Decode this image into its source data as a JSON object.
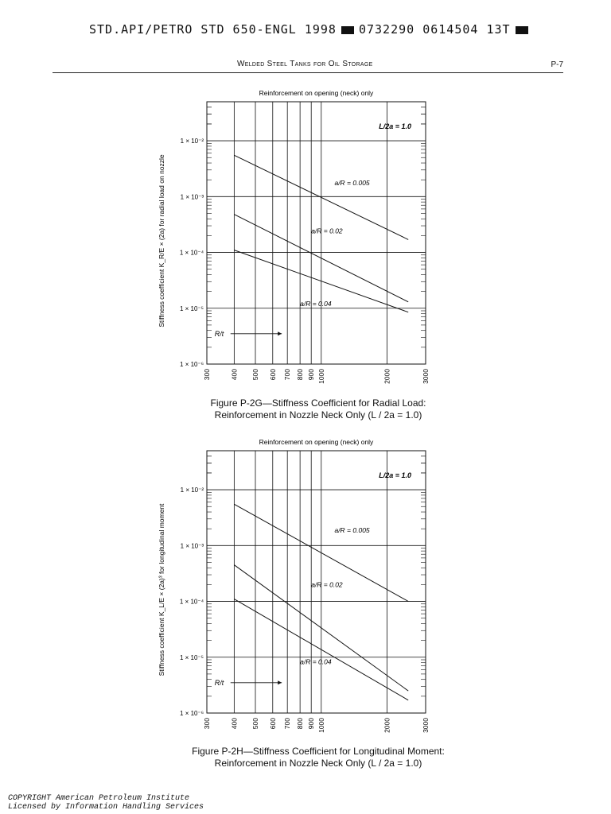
{
  "header": {
    "std_left": "STD.API/PETRO STD 650-ENGL 1998",
    "std_right": "0732290 0614504 13T",
    "running_head": "Welded Steel Tanks for Oil Storage",
    "page_number": "P-7"
  },
  "chart_data": [
    {
      "type": "line",
      "title": "Reinforcement on opening (neck) only",
      "ylabel": "Stiffness coefficient K_R/E × (2a) for radial load on nozzle",
      "xlabel": "R/t",
      "xscale": "log",
      "yscale": "log",
      "xlim": [
        300,
        3000
      ],
      "ylim": [
        1e-06,
        0.05
      ],
      "x_ticks": [
        "300",
        "400",
        "500",
        "600",
        "700",
        "800",
        "900",
        "1000",
        "2000",
        "3000"
      ],
      "y_ticks": [
        "1 × 10⁻²",
        "1 × 10⁻³",
        "1 × 10⁻⁴",
        "1 × 10⁻⁵",
        "1 × 10⁻⁶"
      ],
      "y_tick_values": [
        0.01,
        0.001,
        0.0001,
        1e-05,
        1e-06
      ],
      "annotation": "L/2a = 1.0",
      "series": [
        {
          "name": "a/R = 0.005",
          "x": [
            400,
            2500
          ],
          "y": [
            0.0055,
            0.00017
          ]
        },
        {
          "name": "a/R = 0.02",
          "x": [
            400,
            2500
          ],
          "y": [
            0.00048,
            1.3e-05
          ]
        },
        {
          "name": "a/R = 0.04",
          "x": [
            400,
            2500
          ],
          "y": [
            0.00011,
            8.5e-06
          ]
        }
      ],
      "caption_line1": "Figure P-2G—Stiffness Coefficient for Radial Load:",
      "caption_line2": "Reinforcement in Nozzle Neck Only (L / 2a = 1.0)"
    },
    {
      "type": "line",
      "title": "Reinforcement on opening (neck) only",
      "ylabel": "Stiffness coefficient K_L/E × (2a)³ for longitudinal moment",
      "xlabel": "R/t",
      "xscale": "log",
      "yscale": "log",
      "xlim": [
        300,
        3000
      ],
      "ylim": [
        1e-06,
        0.05
      ],
      "x_ticks": [
        "300",
        "400",
        "500",
        "600",
        "700",
        "800",
        "900",
        "1000",
        "2000",
        "3000"
      ],
      "y_ticks": [
        "1 × 10⁻²",
        "1 × 10⁻³",
        "1 × 10⁻⁴",
        "1 × 10⁻⁵",
        "1 × 10⁻⁶"
      ],
      "y_tick_values": [
        0.01,
        0.001,
        0.0001,
        1e-05,
        1e-06
      ],
      "annotation": "L/2a = 1.0",
      "series": [
        {
          "name": "a/R = 0.005",
          "x": [
            400,
            2500
          ],
          "y": [
            0.0055,
            0.0001
          ]
        },
        {
          "name": "a/R = 0.02",
          "x": [
            400,
            2500
          ],
          "y": [
            0.00045,
            2.5e-06
          ]
        },
        {
          "name": "a/R = 0.04",
          "x": [
            400,
            2500
          ],
          "y": [
            0.00011,
            1.7e-06
          ]
        }
      ],
      "caption_line1": "Figure P-2H—Stiffness Coefficient for Longitudinal Moment:",
      "caption_line2": "Reinforcement in Nozzle Neck Only (L / 2a = 1.0)"
    }
  ],
  "footer": {
    "copyright_line1": "COPYRIGHT American Petroleum Institute",
    "copyright_line2": "Licensed by Information Handling Services"
  }
}
